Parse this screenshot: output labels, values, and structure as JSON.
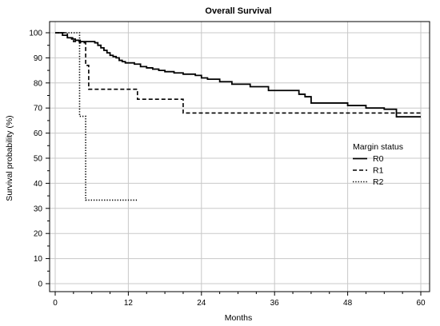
{
  "chart_data": {
    "type": "line",
    "title": "Overall Survival",
    "xlabel": "Months",
    "ylabel": "Survival probability (%)",
    "xlim": [
      0,
      60
    ],
    "ylim": [
      0,
      100
    ],
    "x_ticks": [
      0,
      12,
      24,
      36,
      48,
      60
    ],
    "y_ticks": [
      0,
      10,
      20,
      30,
      40,
      50,
      60,
      70,
      80,
      90,
      100
    ],
    "grid": true,
    "legend": {
      "title": "Margin status",
      "placement": "right",
      "entries": [
        "R0",
        "R1",
        "R2"
      ]
    },
    "series": [
      {
        "name": "R0",
        "style": "solid",
        "color": "#000000",
        "step": true,
        "x": [
          0,
          1.2,
          2.0,
          2.7,
          3.3,
          4.1,
          4.7,
          5.3,
          6.0,
          6.5,
          7.0,
          7.5,
          8.0,
          8.5,
          9.0,
          9.5,
          10.0,
          10.5,
          11.0,
          11.5,
          12.0,
          13.0,
          14.0,
          15.0,
          16.0,
          17.0,
          18.0,
          19.5,
          21.0,
          23.0,
          24.0,
          25.0,
          27.0,
          29.0,
          32.0,
          35.0,
          40.0,
          41.0,
          42.0,
          48.0,
          51.0,
          54.0,
          56.0,
          60.0
        ],
        "y": [
          100,
          99,
          98,
          97.5,
          97,
          96.5,
          96.5,
          96.5,
          96.5,
          96,
          95,
          94,
          93,
          92,
          91,
          90.5,
          90,
          89,
          88.5,
          88,
          88,
          87.5,
          86.5,
          86,
          85.5,
          85,
          84.5,
          84,
          83.5,
          83,
          82,
          81.5,
          80.5,
          79.5,
          78.5,
          77,
          75.5,
          74.5,
          72,
          71,
          70,
          69.5,
          66.5,
          66.5
        ]
      },
      {
        "name": "R1",
        "style": "dashed",
        "color": "#000000",
        "step": true,
        "x": [
          0,
          2.0,
          3.0,
          4.0,
          5.0,
          5.5,
          13.5,
          21.0,
          60.0
        ],
        "y": [
          100,
          98,
          96.5,
          96,
          87,
          77.5,
          73.5,
          68,
          68
        ]
      },
      {
        "name": "R2",
        "style": "dotted",
        "color": "#000000",
        "step": true,
        "x": [
          0,
          4.0,
          5.0,
          13.5
        ],
        "y": [
          100,
          66.7,
          33.3,
          33.3
        ]
      }
    ]
  }
}
